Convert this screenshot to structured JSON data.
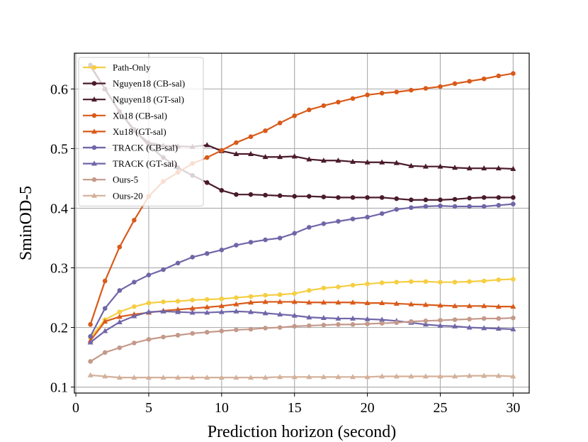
{
  "chart_data": {
    "type": "line",
    "title": "",
    "xlabel": "Prediction horizon (second)",
    "ylabel": "SminOD-5",
    "xlim": [
      -0.1,
      31.1
    ],
    "ylim": [
      0.09,
      0.66
    ],
    "xticks": [
      0,
      5,
      10,
      15,
      20,
      25,
      30
    ],
    "yticks": [
      0.1,
      0.2,
      0.3,
      0.4,
      0.5,
      0.6
    ],
    "ytick_labels": [
      "0.1",
      "0.2",
      "0.3",
      "0.4",
      "0.5",
      "0.6"
    ],
    "grid": true,
    "legend_position": "top-left",
    "series": [
      {
        "name": "Path-Only",
        "color": "#f5ce42",
        "marker": "circle",
        "x": [
          1,
          2,
          3,
          4,
          5,
          6,
          7,
          8,
          9,
          10,
          11,
          12,
          13,
          14,
          15,
          16,
          17,
          18,
          19,
          20,
          21,
          22,
          23,
          24,
          25,
          26,
          27,
          28,
          29,
          30
        ],
        "values": [
          0.183,
          0.213,
          0.226,
          0.235,
          0.241,
          0.243,
          0.244,
          0.246,
          0.247,
          0.248,
          0.25,
          0.252,
          0.254,
          0.255,
          0.257,
          0.262,
          0.266,
          0.268,
          0.271,
          0.273,
          0.275,
          0.276,
          0.277,
          0.277,
          0.276,
          0.276,
          0.277,
          0.278,
          0.28,
          0.281
        ]
      },
      {
        "name": "Nguyen18 (CB-sal)",
        "color": "#4a1a2c",
        "marker": "circle",
        "x": [
          1,
          2,
          3,
          4,
          5,
          6,
          7,
          8,
          9,
          10,
          11,
          12,
          13,
          14,
          15,
          16,
          17,
          18,
          19,
          20,
          21,
          22,
          23,
          24,
          25,
          26,
          27,
          28,
          29,
          30
        ],
        "values": [
          0.64,
          0.6,
          0.562,
          0.532,
          0.505,
          0.485,
          0.468,
          0.455,
          0.443,
          0.43,
          0.423,
          0.423,
          0.422,
          0.421,
          0.42,
          0.42,
          0.419,
          0.418,
          0.418,
          0.418,
          0.418,
          0.416,
          0.414,
          0.414,
          0.414,
          0.415,
          0.417,
          0.418,
          0.418,
          0.418
        ]
      },
      {
        "name": "Nguyen18 (GT-sal)",
        "color": "#4a1a2c",
        "marker": "triangle",
        "x": [
          1,
          2,
          3,
          4,
          5,
          6,
          7,
          8,
          9,
          10,
          11,
          12,
          13,
          14,
          15,
          16,
          17,
          18,
          19,
          20,
          21,
          22,
          23,
          24,
          25,
          26,
          27,
          28,
          29,
          30
        ],
        "values": [
          0.638,
          0.6,
          0.562,
          0.53,
          0.51,
          0.505,
          0.504,
          0.503,
          0.506,
          0.496,
          0.491,
          0.491,
          0.486,
          0.486,
          0.487,
          0.482,
          0.48,
          0.48,
          0.478,
          0.477,
          0.477,
          0.476,
          0.471,
          0.47,
          0.47,
          0.468,
          0.467,
          0.467,
          0.467,
          0.466
        ]
      },
      {
        "name": "Xu18 (CB-sal)",
        "color": "#d95a1a",
        "marker": "circle",
        "x": [
          1,
          2,
          3,
          4,
          5,
          6,
          7,
          8,
          9,
          10,
          11,
          12,
          13,
          14,
          15,
          16,
          17,
          18,
          19,
          20,
          21,
          22,
          23,
          24,
          25,
          26,
          27,
          28,
          29,
          30
        ],
        "values": [
          0.205,
          0.278,
          0.335,
          0.38,
          0.42,
          0.445,
          0.46,
          0.475,
          0.485,
          0.497,
          0.51,
          0.52,
          0.53,
          0.543,
          0.555,
          0.565,
          0.572,
          0.578,
          0.584,
          0.59,
          0.593,
          0.595,
          0.598,
          0.601,
          0.604,
          0.609,
          0.613,
          0.617,
          0.622,
          0.626
        ]
      },
      {
        "name": "Xu18 (GT-sal)",
        "color": "#d95a1a",
        "marker": "triangle",
        "x": [
          1,
          2,
          3,
          4,
          5,
          6,
          7,
          8,
          9,
          10,
          11,
          12,
          13,
          14,
          15,
          16,
          17,
          18,
          19,
          20,
          21,
          22,
          23,
          24,
          25,
          26,
          27,
          28,
          29,
          30
        ],
        "values": [
          0.178,
          0.21,
          0.218,
          0.222,
          0.225,
          0.228,
          0.23,
          0.232,
          0.234,
          0.236,
          0.239,
          0.242,
          0.243,
          0.243,
          0.243,
          0.242,
          0.242,
          0.242,
          0.242,
          0.241,
          0.241,
          0.24,
          0.239,
          0.238,
          0.237,
          0.236,
          0.236,
          0.236,
          0.235,
          0.235
        ]
      },
      {
        "name": "TRACK (CB-sal)",
        "color": "#6f66a8",
        "marker": "circle",
        "x": [
          1,
          2,
          3,
          4,
          5,
          6,
          7,
          8,
          9,
          10,
          11,
          12,
          13,
          14,
          15,
          16,
          17,
          18,
          19,
          20,
          21,
          22,
          23,
          24,
          25,
          26,
          27,
          28,
          29,
          30
        ],
        "values": [
          0.185,
          0.232,
          0.262,
          0.276,
          0.288,
          0.297,
          0.308,
          0.318,
          0.324,
          0.33,
          0.338,
          0.343,
          0.347,
          0.35,
          0.358,
          0.368,
          0.374,
          0.378,
          0.382,
          0.385,
          0.391,
          0.398,
          0.401,
          0.403,
          0.404,
          0.403,
          0.403,
          0.403,
          0.405,
          0.407
        ]
      },
      {
        "name": "TRACK (GT-sal)",
        "color": "#6f66a8",
        "marker": "triangle",
        "x": [
          1,
          2,
          3,
          4,
          5,
          6,
          7,
          8,
          9,
          10,
          11,
          12,
          13,
          14,
          15,
          16,
          17,
          18,
          19,
          20,
          21,
          22,
          23,
          24,
          25,
          26,
          27,
          28,
          29,
          30
        ],
        "values": [
          0.175,
          0.194,
          0.209,
          0.219,
          0.226,
          0.227,
          0.226,
          0.225,
          0.225,
          0.226,
          0.227,
          0.226,
          0.224,
          0.222,
          0.22,
          0.217,
          0.216,
          0.215,
          0.215,
          0.214,
          0.213,
          0.211,
          0.208,
          0.205,
          0.203,
          0.202,
          0.2,
          0.199,
          0.198,
          0.197
        ]
      },
      {
        "name": "Ours-5",
        "color": "#c4998a",
        "marker": "circle",
        "x": [
          1,
          2,
          3,
          4,
          5,
          6,
          7,
          8,
          9,
          10,
          11,
          12,
          13,
          14,
          15,
          16,
          17,
          18,
          19,
          20,
          21,
          22,
          23,
          24,
          25,
          26,
          27,
          28,
          29,
          30
        ],
        "values": [
          0.143,
          0.158,
          0.166,
          0.174,
          0.18,
          0.184,
          0.187,
          0.19,
          0.192,
          0.194,
          0.196,
          0.197,
          0.199,
          0.2,
          0.202,
          0.203,
          0.204,
          0.205,
          0.205,
          0.206,
          0.207,
          0.208,
          0.21,
          0.211,
          0.212,
          0.213,
          0.214,
          0.215,
          0.215,
          0.216
        ]
      },
      {
        "name": "Ours-20",
        "color": "#d4b09a",
        "marker": "triangle",
        "x": [
          1,
          2,
          3,
          4,
          5,
          6,
          7,
          8,
          9,
          10,
          11,
          12,
          13,
          14,
          15,
          16,
          17,
          18,
          19,
          20,
          21,
          22,
          23,
          24,
          25,
          26,
          27,
          28,
          29,
          30
        ],
        "values": [
          0.12,
          0.118,
          0.116,
          0.116,
          0.116,
          0.116,
          0.116,
          0.116,
          0.116,
          0.116,
          0.116,
          0.116,
          0.116,
          0.117,
          0.117,
          0.117,
          0.117,
          0.117,
          0.117,
          0.117,
          0.118,
          0.118,
          0.118,
          0.118,
          0.118,
          0.118,
          0.119,
          0.119,
          0.119,
          0.118
        ]
      }
    ]
  }
}
